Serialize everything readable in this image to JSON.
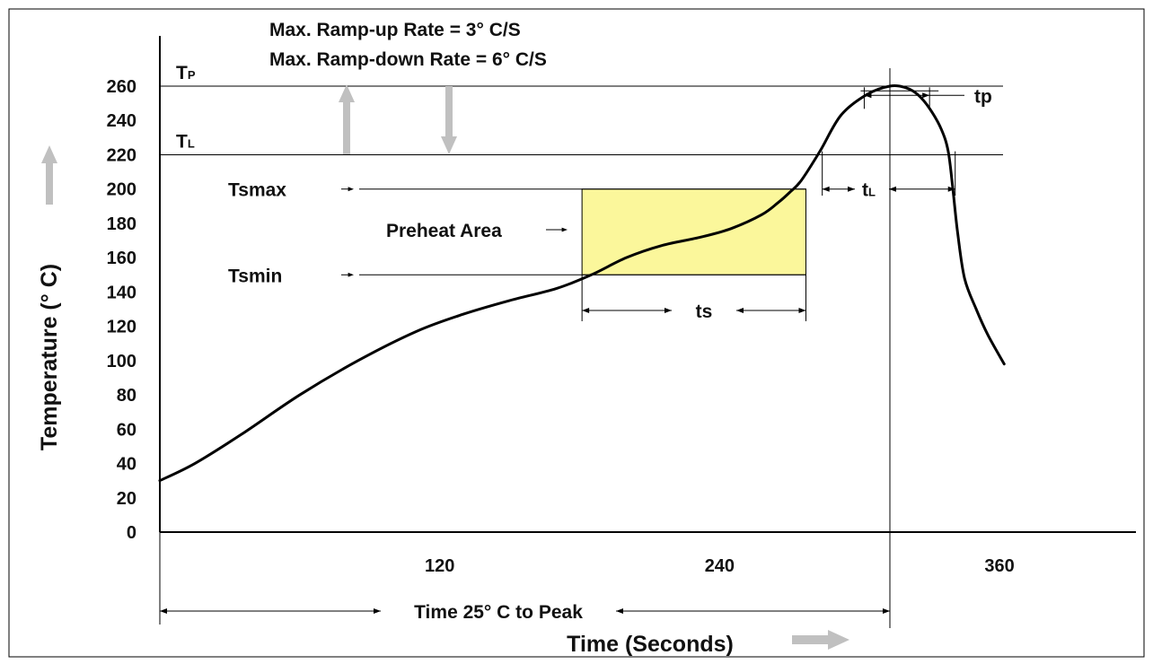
{
  "chart_data": {
    "type": "line",
    "xlabel": "Time (Seconds)",
    "ylabel": "Temperature (° C)",
    "xlim": [
      0,
      420
    ],
    "ylim": [
      0,
      260
    ],
    "x_ticks": [
      120,
      240,
      360
    ],
    "x_tick_labels": [
      "120",
      "240",
      "360"
    ],
    "y_ticks": [
      0,
      20,
      40,
      60,
      80,
      100,
      120,
      140,
      160,
      180,
      200,
      220,
      240,
      260
    ],
    "y_tick_labels": [
      "0",
      "20",
      "40",
      "60",
      "80",
      "100",
      "120",
      "140",
      "160",
      "180",
      "200",
      "220",
      "240",
      "260"
    ],
    "grid": false,
    "series": [
      {
        "color": "#000000",
        "x": [
          0,
          15,
          35,
          60,
          85,
          110,
          130,
          150,
          170,
          185,
          200,
          215,
          232,
          245,
          258,
          265,
          270,
          275,
          283,
          292,
          303,
          313,
          320,
          325,
          330,
          335,
          338,
          340,
          342,
          345,
          350,
          355,
          362
        ],
        "y": [
          30,
          40,
          57,
          80,
          100,
          117,
          127,
          135,
          142,
          150,
          160,
          167,
          172,
          177,
          185,
          192,
          198,
          205,
          222,
          243,
          255,
          260,
          259,
          255,
          247,
          235,
          222,
          200,
          175,
          148,
          130,
          115,
          98
        ]
      }
    ],
    "reference_lines": [
      {
        "label": "T",
        "sub": "P",
        "value": 260
      },
      {
        "label": "T",
        "sub": "L",
        "value": 220
      }
    ],
    "soak_zone": {
      "label": "Preheat Area",
      "x_start": 181,
      "x_end": 277,
      "tsmin_label": "Tsmin",
      "tsmin": 150,
      "tsmax_label": "Tsmax",
      "tsmax": 200,
      "color": "#fbf79b",
      "duration_label": "ts"
    },
    "liquidus_interval": {
      "label": "t",
      "sub": "L",
      "x_start": 284,
      "x_end": 341,
      "y": 200
    },
    "peak_interval": {
      "label": "tp",
      "x_start": 302,
      "x_end": 330,
      "y": 252
    },
    "peak_time": 313,
    "time_to_peak_label": "Time 25° C to Peak",
    "notes": [
      "Max. Ramp-up Rate = 3° C/S",
      "Max. Ramp-down Rate = 6° C/S"
    ],
    "accent_color": "#c0c0c0"
  }
}
